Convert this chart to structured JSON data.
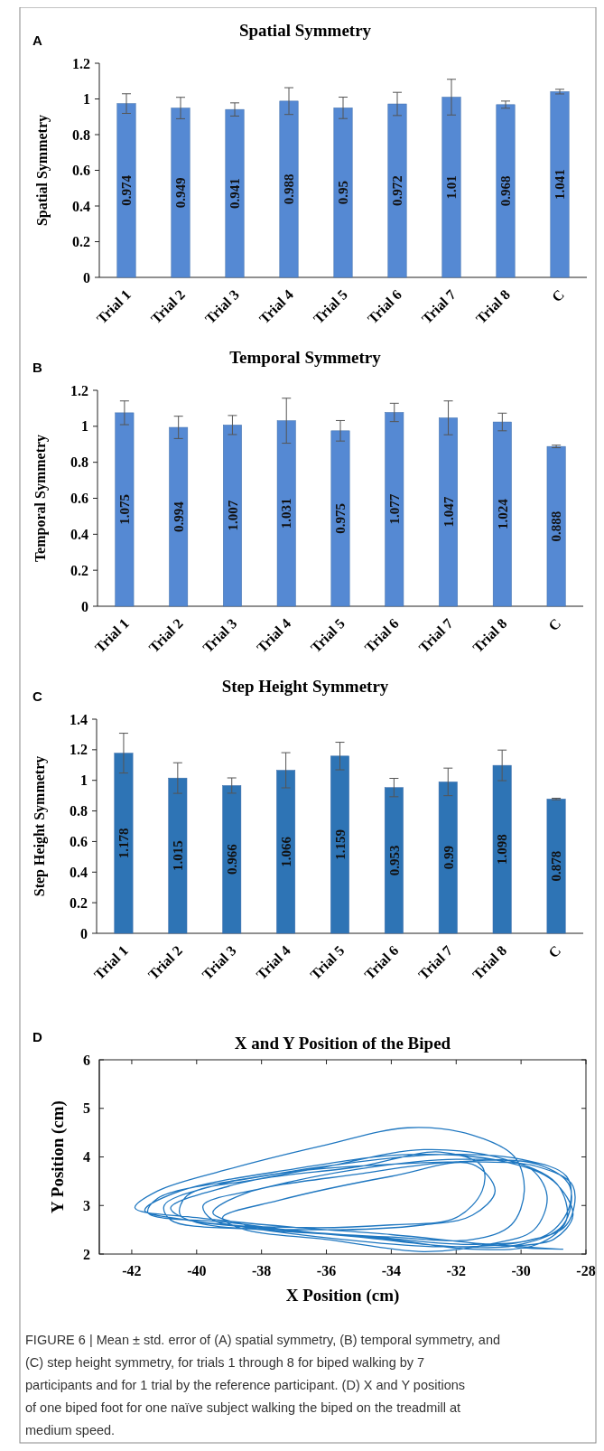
{
  "chart_data": [
    {
      "type": "bar",
      "title": "Spatial Symmetry",
      "ylabel": "Spatial Symmetry",
      "annotations": [
        "A"
      ],
      "categories": [
        "Trial 1",
        "Trial 2",
        "Trial 3",
        "Trial 4",
        "Trial 5",
        "Trial 6",
        "Trial 7",
        "Trial 8",
        "C"
      ],
      "color": "#5589d3",
      "values": [
        0.974,
        0.949,
        0.941,
        0.988,
        0.95,
        0.972,
        1.01,
        0.968,
        1.041
      ],
      "errors": [
        0.055,
        0.06,
        0.037,
        0.075,
        0.06,
        0.065,
        0.1,
        0.02,
        0.013
      ],
      "ylim": [
        0,
        1.2
      ],
      "yticks": [
        0,
        0.2,
        0.4,
        0.6,
        0.8,
        1,
        1.2
      ],
      "data_labels": true
    },
    {
      "type": "bar",
      "title": "Temporal Symmetry",
      "ylabel": "Temporal Symmetry",
      "annotations": [
        "B"
      ],
      "categories": [
        "Trial 1",
        "Trial 2",
        "Trial 3",
        "Trial 4",
        "Trial 5",
        "Trial 6",
        "Trial 7",
        "Trial 8",
        "C"
      ],
      "color": "#5589d3",
      "values": [
        1.075,
        0.994,
        1.007,
        1.031,
        0.975,
        1.077,
        1.047,
        1.024,
        0.888
      ],
      "errors": [
        0.066,
        0.062,
        0.053,
        0.125,
        0.057,
        0.051,
        0.094,
        0.049,
        0.007
      ],
      "ylim": [
        0,
        1.2
      ],
      "yticks": [
        0,
        0.2,
        0.4,
        0.6,
        0.8,
        1,
        1.2
      ],
      "data_labels": true
    },
    {
      "type": "bar",
      "title": "Step Height Symmetry",
      "ylabel": "Step Height Symmetry",
      "annotations": [
        "C"
      ],
      "categories": [
        "Trial 1",
        "Trial 2",
        "Trial 3",
        "Trial 4",
        "Trial 5",
        "Trial 6",
        "Trial 7",
        "Trial 8",
        "C"
      ],
      "color": "#2e74b5",
      "values": [
        1.178,
        1.015,
        0.966,
        1.066,
        1.159,
        0.953,
        0.99,
        1.098,
        0.878
      ],
      "errors": [
        0.13,
        0.1,
        0.05,
        0.115,
        0.09,
        0.06,
        0.09,
        0.1,
        0.005
      ],
      "ylim": [
        0,
        1.4
      ],
      "yticks": [
        0,
        0.2,
        0.4,
        0.6,
        0.8,
        1,
        1.2,
        1.4
      ],
      "data_labels": true
    },
    {
      "type": "line",
      "title": "X and Y Position of the Biped",
      "xlabel": "X Position (cm)",
      "ylabel": "Y Position (cm)",
      "annotations": [
        "D",
        "FIGURE 6 | Mean ± std. error of (A) spatial symmetry, (B) temporal symmetry, and (C) step height symmetry, for trials 1 through 8 for biped walking by 7 participants and for 1 trial by the reference participant. (D) X and Y positions of one biped foot for one naïve subject walking the biped on the treadmill at medium speed."
      ],
      "xlim": [
        -43,
        -28
      ],
      "xticks": [
        -42,
        -40,
        -38,
        -36,
        -34,
        -32,
        -30,
        -28
      ],
      "ylim": [
        2,
        6
      ],
      "yticks": [
        2,
        3,
        4,
        5,
        6
      ],
      "series": [
        {
          "color": "#1f77c0",
          "x": [
            -28.8,
            -31,
            -34,
            -37,
            -40,
            -41.9,
            -41.2,
            -39,
            -36,
            -33.5,
            -31.5,
            -30.2,
            -29.9,
            -30.3,
            -31.5,
            -34,
            -36.5,
            -39,
            -41.5,
            -41.2,
            -38,
            -35,
            -32.5,
            -30,
            -28.6,
            -28.5,
            -29.2,
            -31.5,
            -34.5,
            -38,
            -40.8,
            -41,
            -39.5,
            -37,
            -34,
            -31.5,
            -29.5,
            -28.4,
            -28.6,
            -30,
            -32.5,
            -35.5,
            -38.5,
            -40.5,
            -40.3,
            -38,
            -35,
            -32.5,
            -31.2,
            -31.2,
            -32,
            -34,
            -37,
            -39.5,
            -39.8,
            -38,
            -35,
            -32,
            -29.8,
            -29.2,
            -29.6,
            -31,
            -33,
            -36,
            -38.5,
            -39.2,
            -37.5,
            -34,
            -31.5,
            -30.8,
            -31.5,
            -33,
            -36.5,
            -40,
            -40.8,
            -39,
            -36,
            -33,
            -30.5,
            -28.9,
            -28.6,
            -29.5,
            -31.5,
            -34,
            -36.5,
            -38.5,
            -39.5,
            -38.5,
            -35,
            -32,
            -29.5,
            -28.5,
            -28.7,
            -30,
            -32,
            -35,
            -37.5,
            -40.3,
            -41.6,
            -40.5,
            -37,
            -33.5,
            -30.5,
            -29,
            -28.4,
            -29,
            -30.2,
            -28.7
          ],
          "values": [
            2.1,
            2.2,
            2.4,
            2.55,
            2.75,
            2.95,
            3.3,
            3.75,
            4.25,
            4.6,
            4.45,
            4.0,
            3.3,
            2.6,
            2.3,
            2.35,
            2.45,
            2.65,
            2.85,
            3.15,
            3.6,
            3.9,
            4.05,
            3.95,
            3.6,
            3.0,
            2.4,
            2.2,
            2.35,
            2.5,
            2.7,
            3.0,
            3.4,
            3.7,
            3.85,
            3.9,
            3.8,
            3.4,
            2.6,
            2.25,
            2.15,
            2.3,
            2.55,
            2.8,
            3.2,
            3.55,
            3.8,
            4.1,
            3.8,
            3.3,
            2.75,
            2.6,
            2.55,
            2.7,
            3.0,
            3.35,
            3.75,
            3.95,
            3.8,
            3.2,
            2.5,
            2.2,
            2.05,
            2.3,
            2.5,
            2.75,
            3.1,
            3.6,
            3.85,
            3.3,
            2.8,
            2.6,
            2.5,
            2.65,
            2.95,
            3.4,
            3.8,
            4.15,
            3.95,
            3.45,
            2.7,
            2.2,
            2.1,
            2.3,
            2.45,
            2.6,
            2.85,
            3.25,
            3.65,
            3.9,
            3.85,
            3.4,
            2.6,
            2.2,
            2.15,
            2.35,
            2.5,
            2.7,
            2.9,
            3.3,
            3.75,
            4.05,
            3.9,
            3.5,
            2.8,
            2.3,
            2.15,
            2.1
          ]
        }
      ]
    }
  ]
}
